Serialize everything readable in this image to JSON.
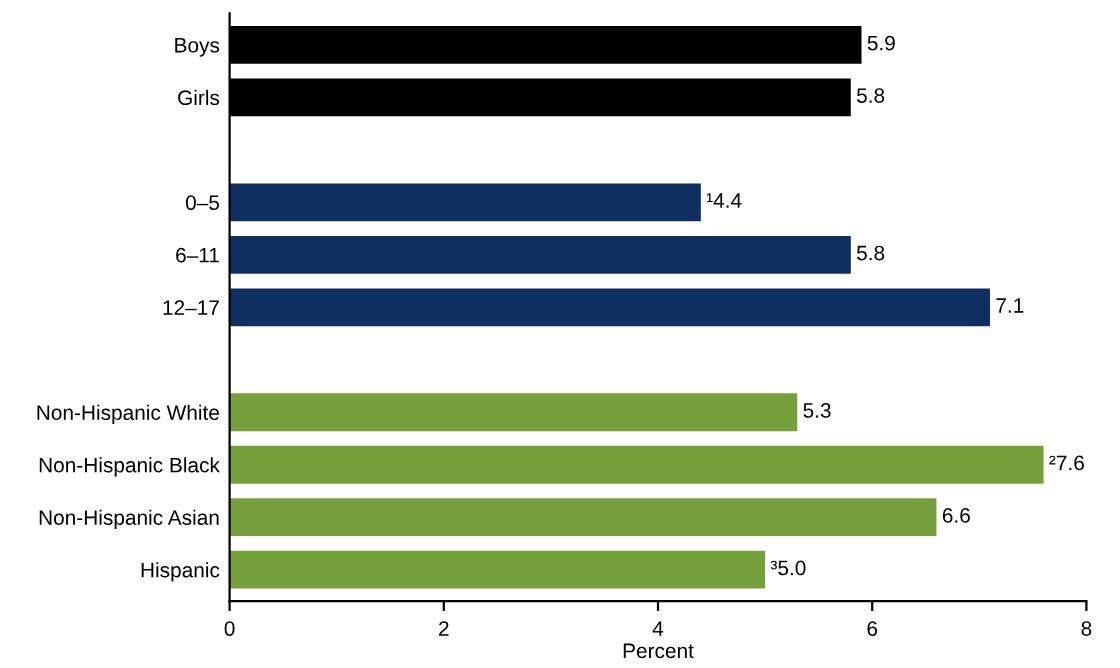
{
  "chart_data": {
    "type": "bar",
    "orientation": "horizontal",
    "xlabel": "Percent",
    "categories": [
      "Boys",
      "Girls",
      null,
      "0–5",
      "6–11",
      "12–17",
      null,
      "Non-Hispanic White",
      "Non-Hispanic Black",
      "Non-Hispanic Asian",
      "Hispanic"
    ],
    "values": [
      5.9,
      5.8,
      null,
      4.4,
      5.8,
      7.1,
      null,
      5.3,
      7.6,
      6.6,
      5.0
    ],
    "colors": [
      "#000000",
      "#000000",
      null,
      "#0e2f5f",
      "#0e2f5f",
      "#0e2f5f",
      null,
      "#76a03c",
      "#76a03c",
      "#76a03c",
      "#76a03c"
    ],
    "value_labels": [
      "5.9",
      "5.8",
      null,
      "¹4.4",
      "5.8",
      "7.1",
      null,
      "5.3",
      "²7.6",
      "6.6",
      "³5.0"
    ],
    "xlim": [
      0,
      8
    ],
    "xticks": [
      0,
      2,
      4,
      6,
      8
    ],
    "grid": false,
    "legend": false
  }
}
